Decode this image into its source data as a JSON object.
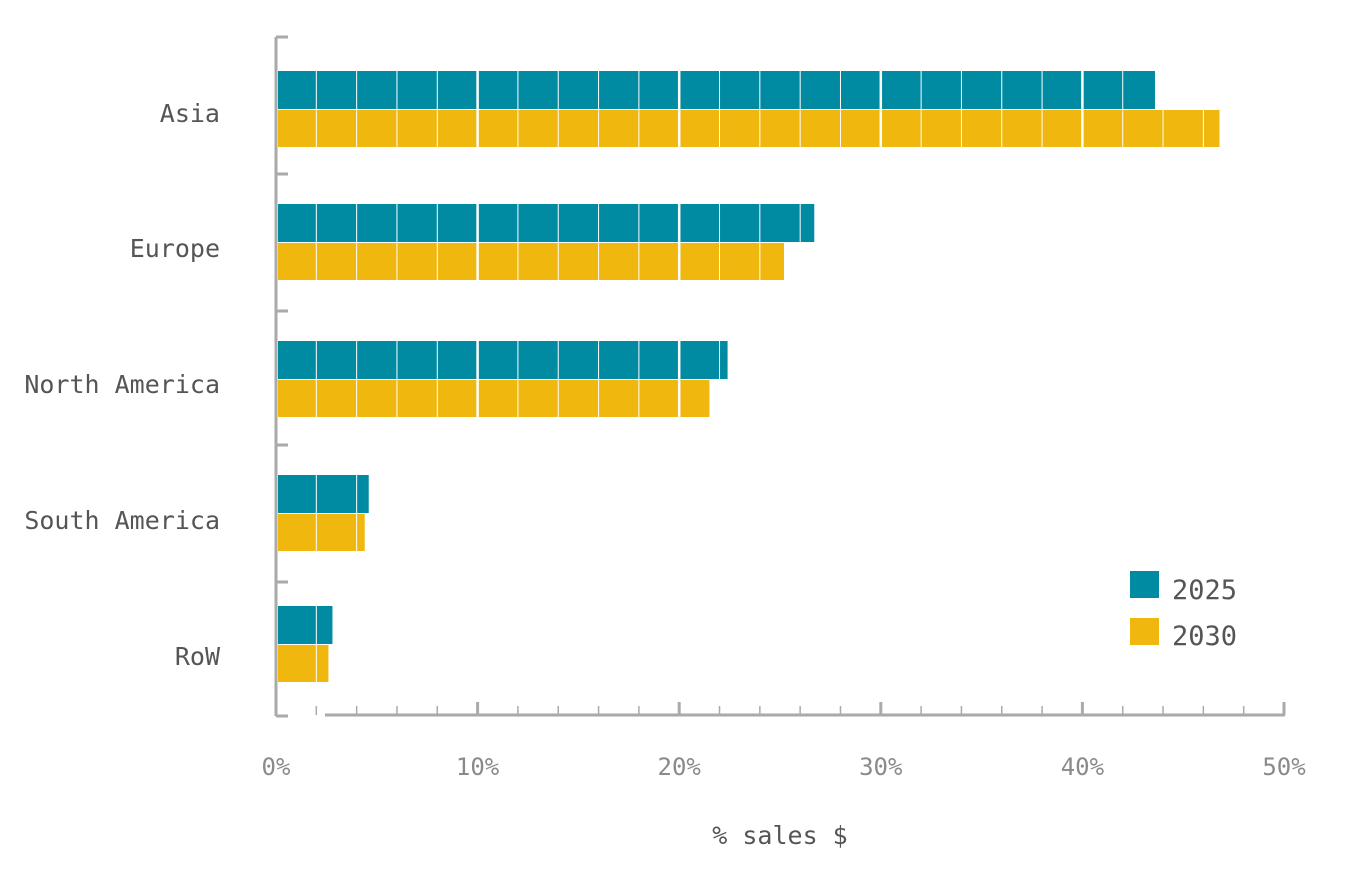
{
  "chart_data": {
    "type": "bar",
    "orientation": "horizontal",
    "categories": [
      "Asia",
      "Europe",
      "North America",
      "South America",
      "RoW"
    ],
    "series": [
      {
        "name": "2025",
        "color": "#008ba3",
        "values": [
          43.6,
          26.7,
          22.4,
          4.6,
          2.8
        ]
      },
      {
        "name": "2030",
        "color": "#f0b70f",
        "values": [
          46.8,
          25.2,
          21.5,
          4.4,
          2.6
        ]
      }
    ],
    "xlabel": "% sales $",
    "xlim": [
      0,
      50
    ],
    "x_ticks": [
      "0%",
      "10%",
      "20%",
      "30%",
      "40%",
      "50%"
    ],
    "legend_position": "bottom-right",
    "grid": false
  }
}
